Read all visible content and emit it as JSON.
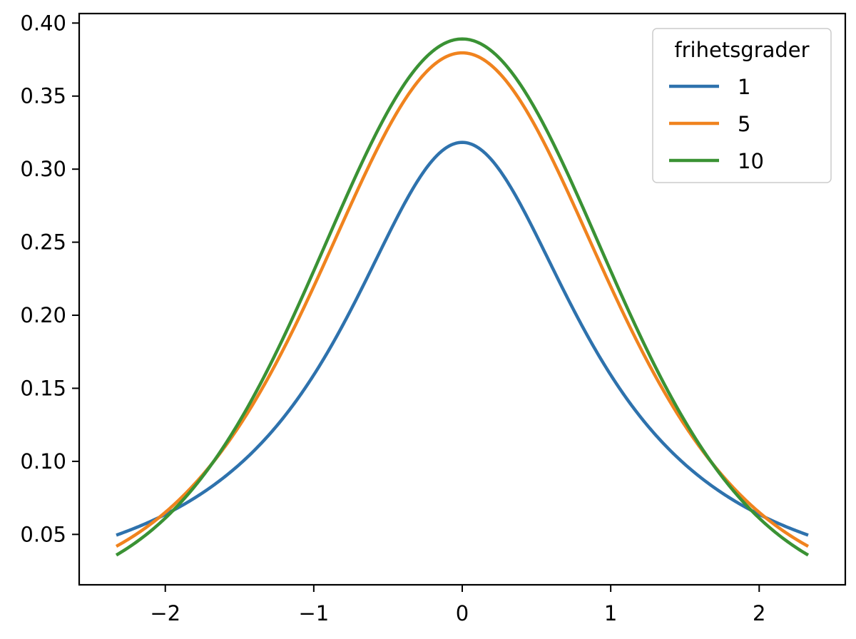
{
  "chart_data": {
    "type": "line",
    "title": "",
    "xlabel": "",
    "ylabel": "",
    "xlim": [
      -2.58,
      2.58
    ],
    "ylim": [
      0.0155,
      0.4065
    ],
    "x_range": [
      -2.33,
      2.33
    ],
    "x_ticks": [
      -2,
      -1,
      0,
      1,
      2
    ],
    "x_tick_labels": [
      "−2",
      "−1",
      "0",
      "1",
      "2"
    ],
    "y_ticks": [
      0.05,
      0.1,
      0.15,
      0.2,
      0.25,
      0.3,
      0.35,
      0.4
    ],
    "y_tick_labels": [
      "0.05",
      "0.10",
      "0.15",
      "0.20",
      "0.25",
      "0.30",
      "0.35",
      "0.40"
    ],
    "grid": false,
    "legend": {
      "title": "frihetsgrader",
      "position": "top-right"
    },
    "series": [
      {
        "name": "1",
        "color": "#2e72ad",
        "df": 1
      },
      {
        "name": "5",
        "color": "#f0831e",
        "df": 5
      },
      {
        "name": "10",
        "color": "#3a9234",
        "df": 10
      }
    ],
    "annotations": []
  }
}
